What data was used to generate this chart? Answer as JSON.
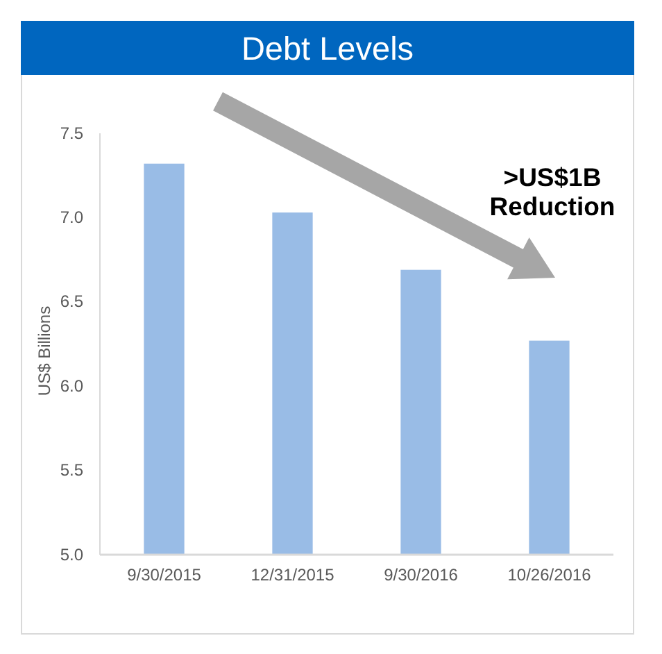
{
  "chart_data": {
    "type": "bar",
    "title": "Debt Levels",
    "ylabel": "US$ Billions",
    "categories": [
      "9/30/2015",
      "12/31/2015",
      "9/30/2016",
      "10/26/2016"
    ],
    "values": [
      7.32,
      7.03,
      6.69,
      6.27
    ],
    "color": "#99bce6",
    "ylim": [
      5.0,
      7.5
    ],
    "yticks": [
      {
        "value": 5.0,
        "label": "5.0"
      },
      {
        "value": 5.5,
        "label": "5.5"
      },
      {
        "value": 6.0,
        "label": "6.0"
      },
      {
        "value": 6.5,
        "label": "6.5"
      },
      {
        "value": 7.0,
        "label": "7.0"
      },
      {
        "value": 7.5,
        "label": "7.5"
      }
    ],
    "grid": false,
    "annotations": [
      ">US$1B Reduction"
    ]
  }
}
